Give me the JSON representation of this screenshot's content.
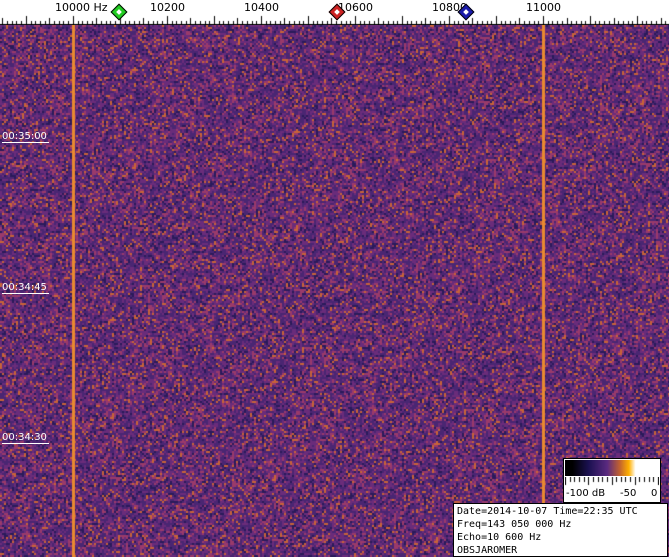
{
  "chart_data": {
    "type": "heatmap",
    "xlabel_unit": "Hz",
    "x_ticks": [
      {
        "value": 10000,
        "label": "10000  Hz"
      },
      {
        "value": 10200,
        "label": "10200"
      },
      {
        "value": 10400,
        "label": "10400"
      },
      {
        "value": 10600,
        "label": "10600"
      },
      {
        "value": 10800,
        "label": "10800"
      },
      {
        "value": 11000,
        "label": "11000"
      }
    ],
    "xlim": [
      9845,
      11268
    ],
    "y_ticks": [
      "00:35:00",
      "00:34:45",
      "00:34:30"
    ],
    "markers": [
      {
        "freq": 10098,
        "color": "#22cc22"
      },
      {
        "freq": 10562,
        "color": "#cc2222"
      },
      {
        "freq": 10836,
        "color": "#1a1aaa"
      }
    ],
    "steady_lines_hz": [
      10000,
      11000
    ],
    "colorscale": {
      "labels": [
        "-100 dB",
        "-50",
        "0"
      ],
      "range_db": [
        -100,
        0
      ]
    },
    "colors": {
      "background": "#5a2a78",
      "speckle": "#d07030",
      "line": "#e88a30"
    }
  },
  "info": {
    "date_time": "Date=2014-10-07 Time=22:35 UTC",
    "freq": "Freq=143 050 000 Hz",
    "echo": "Echo=10 600 Hz",
    "observer": "OBSJAROMER"
  }
}
